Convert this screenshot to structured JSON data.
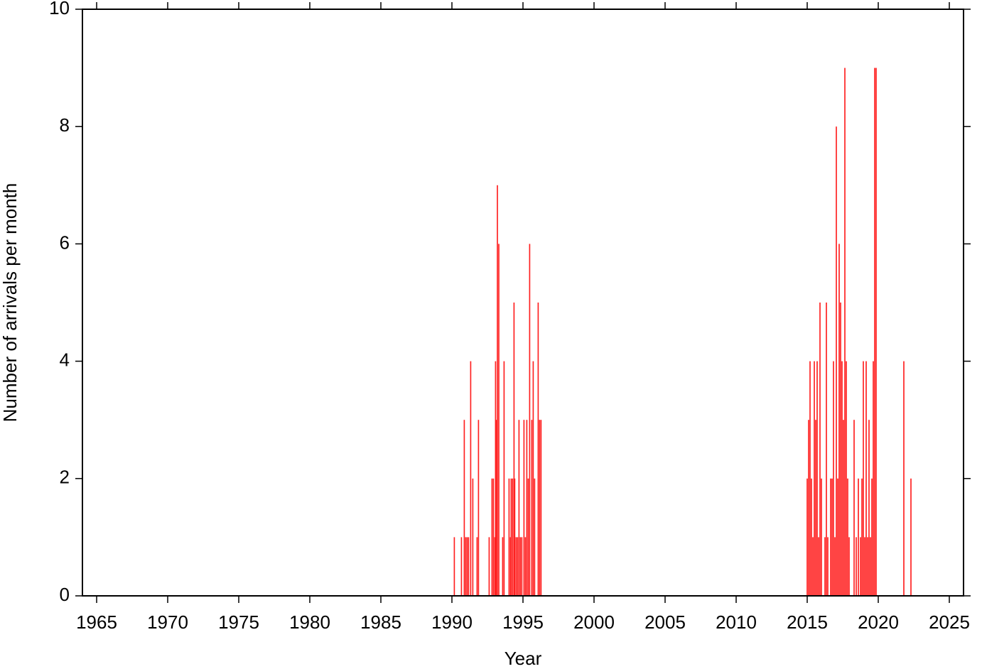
{
  "chart_data": {
    "type": "bar",
    "xlabel": "Year",
    "ylabel": "Number of arrivals per month",
    "color": "#ff2020",
    "x": [
      1990.17,
      1990.67,
      1990.87,
      1990.97,
      1991.07,
      1991.17,
      1991.32,
      1991.47,
      1991.77,
      1991.87,
      1992.62,
      1992.82,
      1992.92,
      1993.02,
      1993.07,
      1993.12,
      1993.2,
      1993.3,
      1993.57,
      1993.67,
      1994.02,
      1994.12,
      1994.17,
      1994.27,
      1994.37,
      1994.42,
      1994.52,
      1994.62,
      1994.72,
      1994.82,
      1994.92,
      1995.07,
      1995.17,
      1995.27,
      1995.37,
      1995.47,
      1995.62,
      1995.72,
      1995.82,
      1996.07,
      1996.17,
      1996.27,
      2015.0,
      2015.1,
      2015.2,
      2015.3,
      2015.4,
      2015.5,
      2015.6,
      2015.7,
      2015.8,
      2015.9,
      2016.0,
      2016.25,
      2016.35,
      2016.45,
      2016.65,
      2016.75,
      2016.85,
      2016.95,
      2017.05,
      2017.15,
      2017.25,
      2017.35,
      2017.45,
      2017.55,
      2017.65,
      2017.75,
      2017.85,
      2017.95,
      2018.3,
      2018.45,
      2018.6,
      2018.75,
      2018.85,
      2018.95,
      2019.05,
      2019.15,
      2019.25,
      2019.35,
      2019.45,
      2019.55,
      2019.65,
      2019.75,
      2019.85,
      2021.8,
      2022.3
    ],
    "values": [
      1,
      1,
      3,
      1,
      1,
      1,
      4,
      2,
      1,
      3,
      1,
      2,
      2,
      1,
      4,
      3,
      7,
      6,
      1,
      4,
      2,
      1,
      2,
      2,
      5,
      2,
      1,
      1,
      3,
      1,
      1,
      3,
      1,
      3,
      2,
      6,
      3,
      4,
      2,
      5,
      3,
      3,
      2,
      3,
      4,
      2,
      1,
      4,
      3,
      4,
      1,
      5,
      2,
      1,
      5,
      1,
      2,
      2,
      4,
      1,
      8,
      2,
      6,
      5,
      4,
      3,
      9,
      4,
      2,
      1,
      3,
      1,
      2,
      1,
      2,
      4,
      1,
      4,
      1,
      3,
      1,
      2,
      4,
      9,
      9,
      4,
      2
    ],
    "xlim": [
      1964,
      2026
    ],
    "ylim": [
      0,
      10
    ],
    "xticks": [
      1965,
      1970,
      1975,
      1980,
      1985,
      1990,
      1995,
      2000,
      2005,
      2010,
      2015,
      2020,
      2025
    ],
    "yticks": [
      0,
      2,
      4,
      6,
      8,
      10
    ]
  }
}
